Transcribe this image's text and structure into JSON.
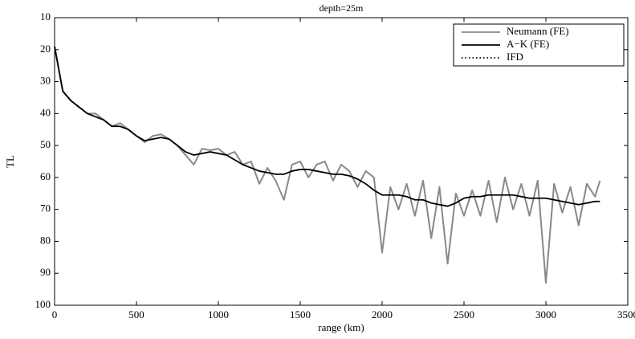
{
  "chart_data": {
    "type": "line",
    "title": "depth=25m",
    "xlabel": "range (km)",
    "ylabel": "TL",
    "x": [
      0,
      50,
      100,
      150,
      200,
      250,
      300,
      350,
      400,
      450,
      500,
      550,
      600,
      650,
      700,
      750,
      800,
      850,
      900,
      950,
      1000,
      1050,
      1100,
      1150,
      1200,
      1250,
      1300,
      1350,
      1400,
      1450,
      1500,
      1550,
      1600,
      1650,
      1700,
      1750,
      1800,
      1850,
      1900,
      1950,
      2000,
      2050,
      2100,
      2150,
      2200,
      2250,
      2300,
      2350,
      2400,
      2450,
      2500,
      2550,
      2600,
      2650,
      2700,
      2750,
      2800,
      2850,
      2900,
      2950,
      3000,
      3050,
      3100,
      3150,
      3200,
      3250,
      3300,
      3330
    ],
    "series": [
      {
        "name": "Neumann (FE)",
        "color": "#888888",
        "style": "solid",
        "values": [
          19,
          33,
          36,
          38,
          40,
          40,
          42,
          44,
          43,
          45,
          47,
          49,
          47,
          46.5,
          48,
          50,
          53,
          56,
          51,
          51.5,
          51,
          53,
          52,
          56,
          55,
          62,
          57,
          61,
          67,
          56,
          55,
          60,
          56,
          55,
          61,
          56,
          58,
          63,
          58,
          60,
          83.5,
          63,
          70,
          62,
          72,
          61,
          79,
          63,
          87,
          65,
          72,
          64,
          72,
          61,
          74,
          60,
          70,
          62,
          72,
          61,
          93,
          62,
          71,
          63,
          75,
          62,
          66,
          61
        ]
      },
      {
        "name": "A−K (FE)",
        "color": "#000000",
        "style": "solid",
        "values": [
          19,
          33,
          36,
          38,
          40,
          41,
          42,
          44,
          44,
          45,
          47,
          48.5,
          48,
          47.5,
          48,
          50,
          52,
          53,
          52.5,
          52,
          52.5,
          53,
          54.5,
          56,
          57,
          58,
          58.5,
          59,
          59,
          58,
          57.5,
          57.5,
          58,
          58.5,
          59,
          59,
          59.5,
          60.5,
          62,
          64,
          65.5,
          65.5,
          65.5,
          66,
          67,
          67,
          68,
          68.5,
          69,
          68,
          66.5,
          66,
          66,
          65.5,
          65.5,
          65.5,
          65.5,
          66,
          66.5,
          66.5,
          66.5,
          67,
          67.5,
          68,
          68.5,
          68,
          67.5,
          67.5
        ]
      },
      {
        "name": "IFD",
        "color": "#000000",
        "style": "dotted",
        "values": [
          19,
          33,
          36,
          38,
          40,
          41,
          42,
          44,
          44,
          45,
          47,
          48.5,
          48,
          47.5,
          48,
          50,
          52,
          53,
          52.5,
          52,
          52.5,
          53,
          54.5,
          56,
          57,
          58,
          58.5,
          59,
          59,
          58,
          57.5,
          57.5,
          58,
          58.5,
          59,
          59,
          59.5,
          60.5,
          62,
          64,
          65.5,
          65.5,
          65.5,
          66,
          67,
          67,
          68,
          68.5,
          69,
          68,
          66.5,
          66,
          66,
          65.5,
          65.5,
          65.5,
          65.5,
          66,
          66.5,
          66.5,
          66.5,
          67,
          67.5,
          68,
          68.5,
          68,
          67.5,
          67.5
        ]
      }
    ],
    "xlim": [
      0,
      3500
    ],
    "xticks": [
      0,
      500,
      1000,
      1500,
      2000,
      2500,
      3000,
      3500
    ],
    "ylim": [
      100,
      10
    ],
    "yticks": [
      10,
      20,
      30,
      40,
      50,
      60,
      70,
      80,
      90,
      100
    ],
    "legend": "top-right"
  }
}
